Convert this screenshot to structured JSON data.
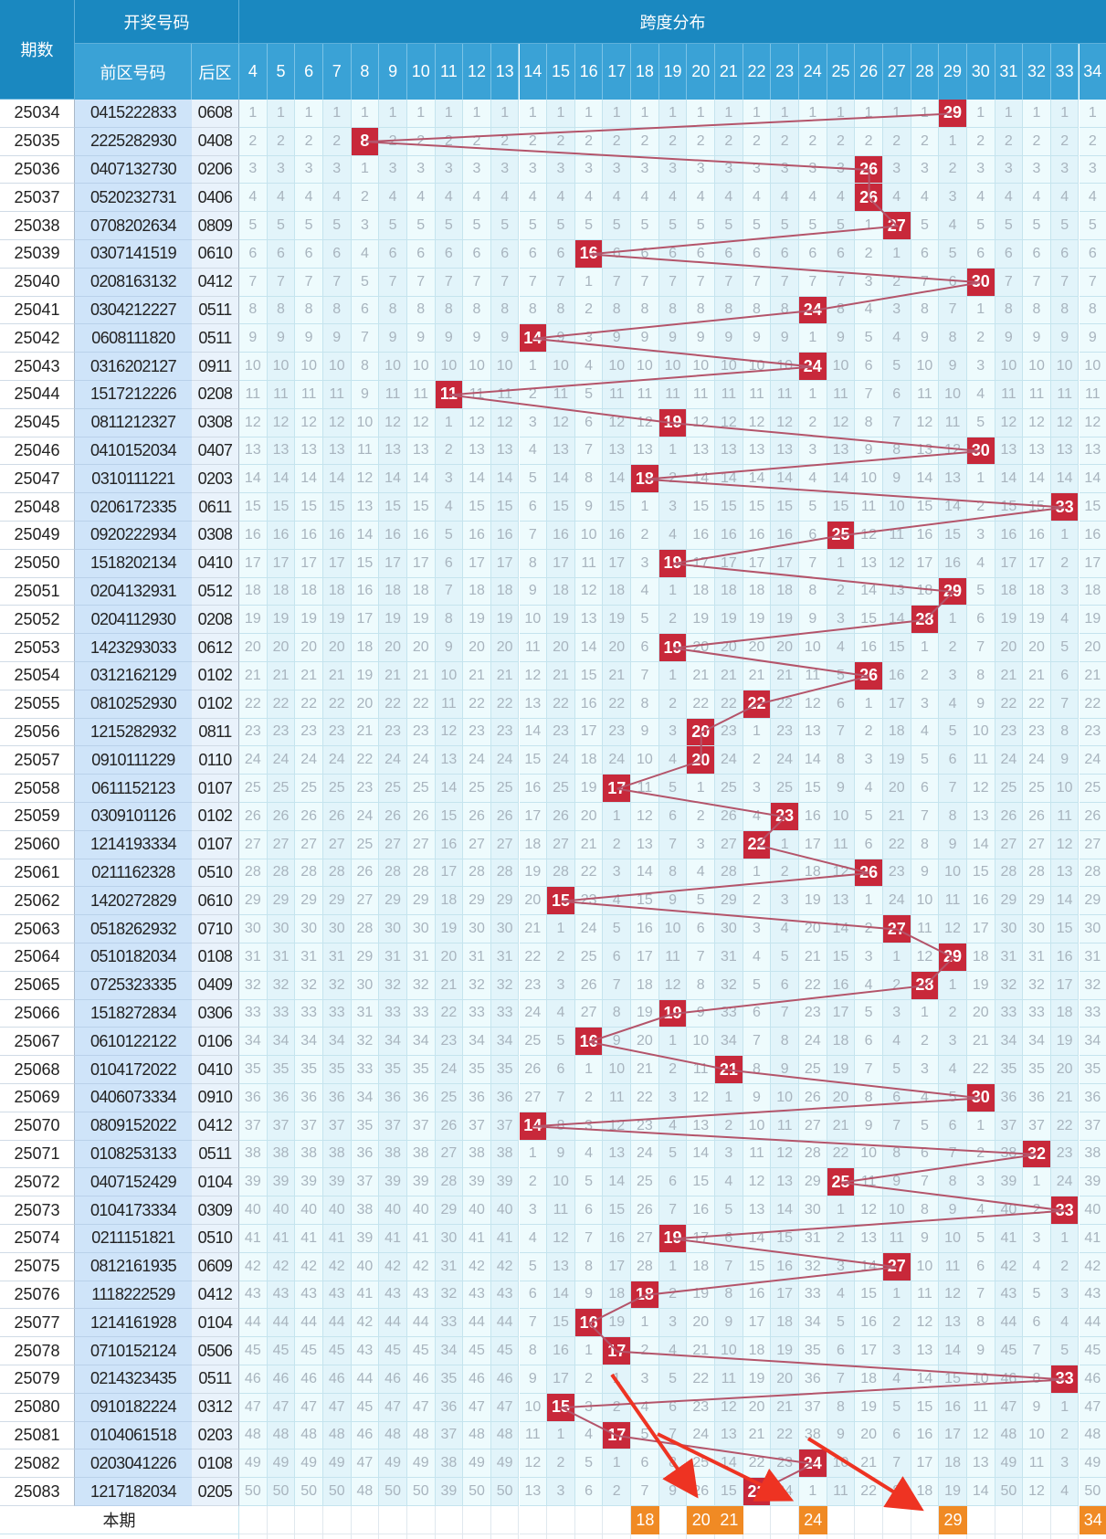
{
  "header": {
    "period_label": "期数",
    "draw_numbers_label": "开奖号码",
    "front_zone_label": "前区号码",
    "back_zone_label": "后区",
    "span_distribution_label": "跨度分布",
    "span_columns": [
      "4",
      "5",
      "6",
      "7",
      "8",
      "9",
      "10",
      "11",
      "12",
      "13",
      "14",
      "15",
      "16",
      "17",
      "18",
      "19",
      "20",
      "21",
      "22",
      "23",
      "24",
      "25",
      "26",
      "27",
      "28",
      "29",
      "30",
      "31",
      "32",
      "33",
      "34"
    ]
  },
  "rows": [
    {
      "period": "25034",
      "front": "0415222833",
      "back": "0608",
      "span": 29
    },
    {
      "period": "25035",
      "front": "2225282930",
      "back": "0408",
      "span": 8
    },
    {
      "period": "25036",
      "front": "0407132730",
      "back": "0206",
      "span": 26
    },
    {
      "period": "25037",
      "front": "0520232731",
      "back": "0406",
      "span": 26
    },
    {
      "period": "25038",
      "front": "0708202634",
      "back": "0809",
      "span": 27
    },
    {
      "period": "25039",
      "front": "0307141519",
      "back": "0610",
      "span": 16
    },
    {
      "period": "25040",
      "front": "0208163132",
      "back": "0412",
      "span": 30
    },
    {
      "period": "25041",
      "front": "0304212227",
      "back": "0511",
      "span": 24
    },
    {
      "period": "25042",
      "front": "0608111820",
      "back": "0511",
      "span": 14
    },
    {
      "period": "25043",
      "front": "0316202127",
      "back": "0911",
      "span": 24
    },
    {
      "period": "25044",
      "front": "1517212226",
      "back": "0208",
      "span": 11
    },
    {
      "period": "25045",
      "front": "0811212327",
      "back": "0308",
      "span": 19
    },
    {
      "period": "25046",
      "front": "0410152034",
      "back": "0407",
      "span": 30
    },
    {
      "period": "25047",
      "front": "0310111221",
      "back": "0203",
      "span": 18
    },
    {
      "period": "25048",
      "front": "0206172335",
      "back": "0611",
      "span": 33
    },
    {
      "period": "25049",
      "front": "0920222934",
      "back": "0308",
      "span": 25
    },
    {
      "period": "25050",
      "front": "1518202134",
      "back": "0410",
      "span": 19
    },
    {
      "period": "25051",
      "front": "0204132931",
      "back": "0512",
      "span": 29
    },
    {
      "period": "25052",
      "front": "0204112930",
      "back": "0208",
      "span": 28
    },
    {
      "period": "25053",
      "front": "1423293033",
      "back": "0612",
      "span": 19
    },
    {
      "period": "25054",
      "front": "0312162129",
      "back": "0102",
      "span": 26
    },
    {
      "period": "25055",
      "front": "0810252930",
      "back": "0102",
      "span": 22
    },
    {
      "period": "25056",
      "front": "1215282932",
      "back": "0811",
      "span": 20
    },
    {
      "period": "25057",
      "front": "0910111229",
      "back": "0110",
      "span": 20
    },
    {
      "period": "25058",
      "front": "0611152123",
      "back": "0107",
      "span": 17
    },
    {
      "period": "25059",
      "front": "0309101126",
      "back": "0102",
      "span": 23
    },
    {
      "period": "25060",
      "front": "1214193334",
      "back": "0107",
      "span": 22
    },
    {
      "period": "25061",
      "front": "0211162328",
      "back": "0510",
      "span": 26
    },
    {
      "period": "25062",
      "front": "1420272829",
      "back": "0610",
      "span": 15
    },
    {
      "period": "25063",
      "front": "0518262932",
      "back": "0710",
      "span": 27
    },
    {
      "period": "25064",
      "front": "0510182034",
      "back": "0108",
      "span": 29
    },
    {
      "period": "25065",
      "front": "0725323335",
      "back": "0409",
      "span": 28
    },
    {
      "period": "25066",
      "front": "1518272834",
      "back": "0306",
      "span": 19
    },
    {
      "period": "25067",
      "front": "0610122122",
      "back": "0106",
      "span": 16
    },
    {
      "period": "25068",
      "front": "0104172022",
      "back": "0410",
      "span": 21
    },
    {
      "period": "25069",
      "front": "0406073334",
      "back": "0910",
      "span": 30
    },
    {
      "period": "25070",
      "front": "0809152022",
      "back": "0412",
      "span": 14
    },
    {
      "period": "25071",
      "front": "0108253133",
      "back": "0511",
      "span": 32
    },
    {
      "period": "25072",
      "front": "0407152429",
      "back": "0104",
      "span": 25
    },
    {
      "period": "25073",
      "front": "0104173334",
      "back": "0309",
      "span": 33
    },
    {
      "period": "25074",
      "front": "0211151821",
      "back": "0510",
      "span": 19
    },
    {
      "period": "25075",
      "front": "0812161935",
      "back": "0609",
      "span": 27
    },
    {
      "period": "25076",
      "front": "1118222529",
      "back": "0412",
      "span": 18
    },
    {
      "period": "25077",
      "front": "1214161928",
      "back": "0104",
      "span": 16
    },
    {
      "period": "25078",
      "front": "0710152124",
      "back": "0506",
      "span": 17
    },
    {
      "period": "25079",
      "front": "0214323435",
      "back": "0511",
      "span": 33
    },
    {
      "period": "25080",
      "front": "0910182224",
      "back": "0312",
      "span": 15
    },
    {
      "period": "25081",
      "front": "0104061518",
      "back": "0203",
      "span": 17
    },
    {
      "period": "25082",
      "front": "0203041226",
      "back": "0108",
      "span": 24
    },
    {
      "period": "25083",
      "front": "1217182034",
      "back": "0205",
      "span": 22
    }
  ],
  "footer": {
    "current_label": "本期",
    "next_label": "本期",
    "highlighted": [
      "18",
      "20",
      "21",
      "24",
      "29",
      "34"
    ]
  },
  "colors": {
    "header_bg": "#1a88c0",
    "hit_red": "#c8283a",
    "highlight_orange": "#f08a24",
    "link_line": "#b4546a",
    "arrow_red": "#ee3322"
  },
  "icons": [
    "arrow-annotation-icon"
  ]
}
